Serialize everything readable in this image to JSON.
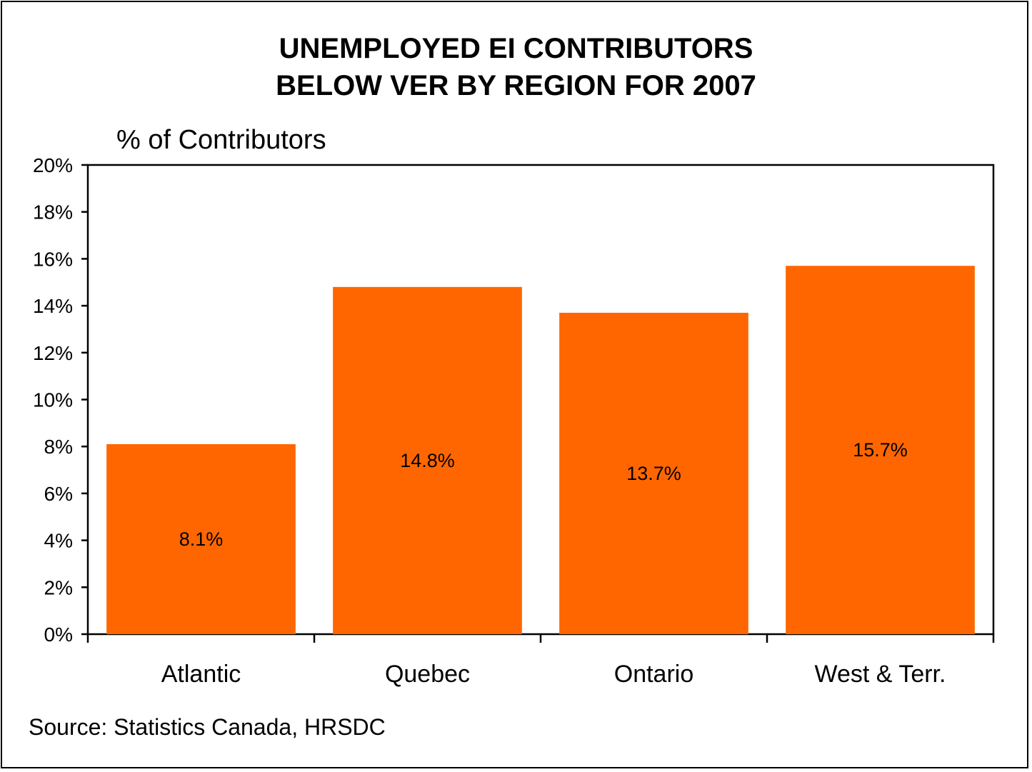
{
  "chart_data": {
    "type": "bar",
    "title_lines": [
      "UNEMPLOYED EI CONTRIBUTORS",
      "BELOW VER BY REGION FOR 2007"
    ],
    "ylabel": "% of Contributors",
    "categories": [
      "Atlantic",
      "Quebec",
      "Ontario",
      "West & Terr."
    ],
    "values": [
      8.1,
      14.8,
      13.7,
      15.7
    ],
    "data_labels": [
      "8.1%",
      "14.8%",
      "13.7%",
      "15.7%"
    ],
    "ylim": [
      0,
      20
    ],
    "yticks": [
      0,
      2,
      4,
      6,
      8,
      10,
      12,
      14,
      16,
      18,
      20
    ],
    "ytick_labels": [
      "0%",
      "2%",
      "4%",
      "6%",
      "8%",
      "10%",
      "12%",
      "14%",
      "16%",
      "18%",
      "20%"
    ],
    "grid": false,
    "legend": "none",
    "bar_color": "#FF6600",
    "source": "Source: Statistics Canada, HRSDC"
  }
}
